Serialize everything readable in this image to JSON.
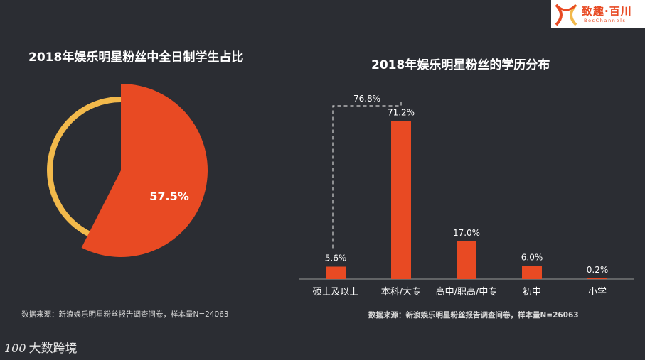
{
  "logo": {
    "name": "致趣·百川",
    "sub": "BesChannels"
  },
  "footer_brand": {
    "mark": "100",
    "name": "大数跨境"
  },
  "colors": {
    "accent": "#e84a23",
    "ring": "#f2b94b",
    "background": "#2b2d33"
  },
  "chart_data": [
    {
      "type": "pie",
      "title": "2018年娱乐明星粉丝中全日制学生占比",
      "slices": [
        {
          "label": "57.5%",
          "value": 57.5
        },
        {
          "value": 42.5
        }
      ],
      "source": "数据来源：新浪娱乐明星粉丝报告调查问卷，样本量N=24063"
    },
    {
      "type": "bar",
      "title": "2018年娱乐明星粉丝的学历分布",
      "categories": [
        "硕士及以上",
        "本科/大专",
        "高中/职高/中专",
        "初中",
        "小学"
      ],
      "values": [
        5.6,
        71.2,
        17.0,
        6.0,
        0.2
      ],
      "value_labels": [
        "5.6%",
        "71.2%",
        "17.0%",
        "6.0%",
        "0.2%"
      ],
      "ylim": [
        0,
        80
      ],
      "annotation": {
        "label": "76.8%",
        "value": 76.8,
        "spans": [
          "硕士及以上",
          "本科/大专"
        ]
      },
      "source": "数据来源：新浪娱乐明星粉丝报告调查问卷，样本量N=26063"
    }
  ]
}
